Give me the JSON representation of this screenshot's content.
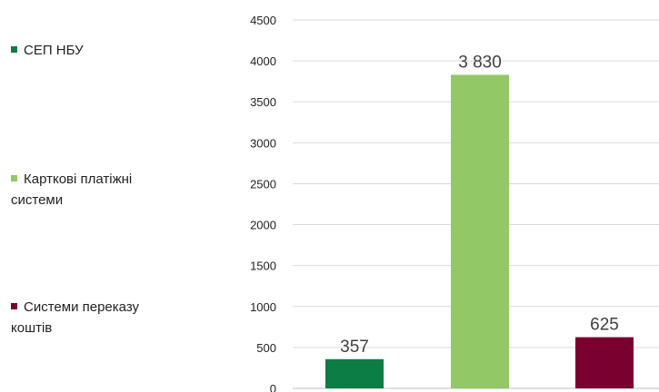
{
  "chart_data": {
    "type": "bar",
    "categories": [
      "СЕП НБУ",
      "Карткові платіжні системи",
      "Системи переказу коштів"
    ],
    "values": [
      357,
      3830,
      625
    ],
    "data_labels": [
      "357",
      "3 830",
      "625"
    ],
    "colors": [
      "#0b7d45",
      "#92c866",
      "#7a0030"
    ],
    "ylim": [
      0,
      4500
    ],
    "yticks": [
      "0",
      "500",
      "1000",
      "1500",
      "2000",
      "2500",
      "3000",
      "3500",
      "4000",
      "4500"
    ],
    "grid": true,
    "legend_position": "left",
    "legend": [
      {
        "label": "СЕП НБУ",
        "color": "#0b7d45"
      },
      {
        "label": "Карткові платіжні\nсистеми",
        "color": "#92c866"
      },
      {
        "label": "Системи переказу\nкоштів",
        "color": "#7a0030"
      }
    ]
  }
}
